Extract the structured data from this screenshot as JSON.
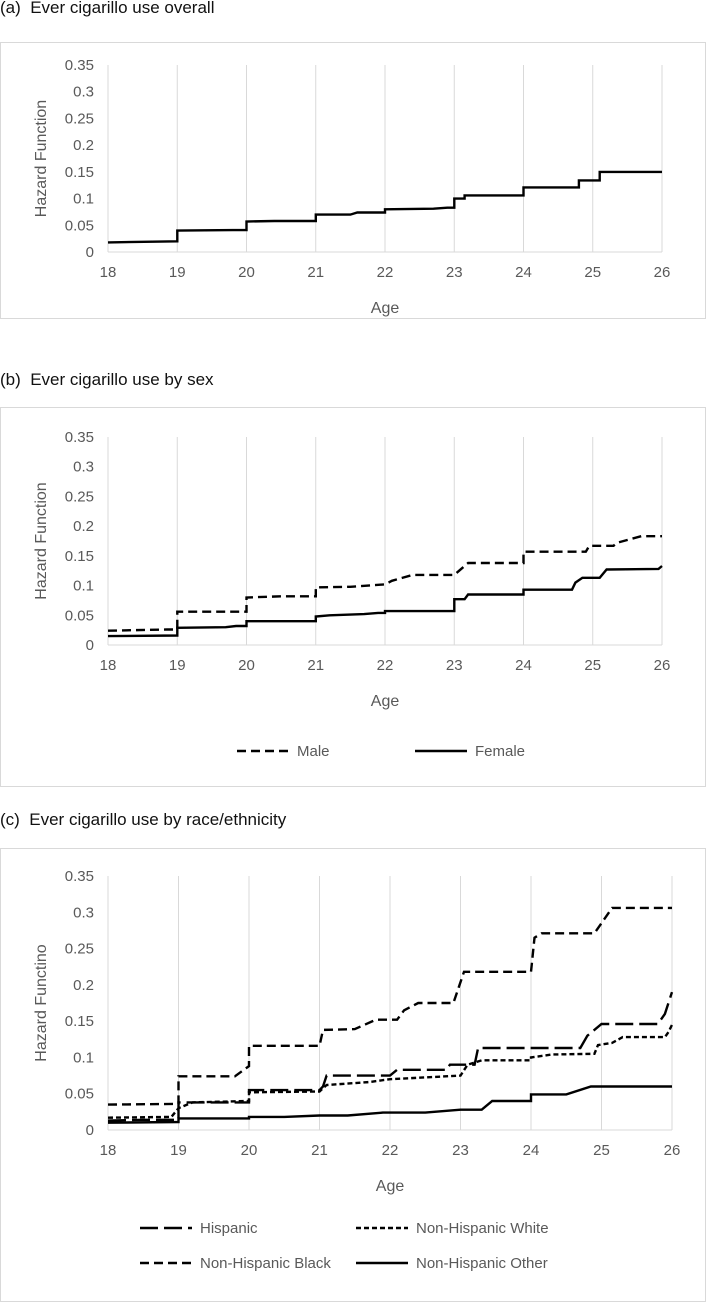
{
  "chart_data": [
    {
      "type": "line",
      "panel_title": "(a)  Ever cigarillo use overall",
      "xlabel": "Age",
      "ylabel": "Hazard Function",
      "xlim": [
        18,
        26
      ],
      "ylim": [
        0,
        0.35
      ],
      "x_ticks": [
        "18",
        "19",
        "20",
        "21",
        "22",
        "23",
        "24",
        "25",
        "26"
      ],
      "y_ticks": [
        "0",
        "0.05",
        "0.1",
        "0.15",
        "0.2",
        "0.25",
        "0.3",
        "0.35"
      ],
      "grid": "vertical",
      "legend": "none",
      "series": [
        {
          "style": "solid",
          "points": [
            [
              18,
              0.018
            ],
            [
              19,
              0.02
            ],
            [
              19,
              0.04
            ],
            [
              19.8,
              0.041
            ],
            [
              20,
              0.041
            ],
            [
              20,
              0.057
            ],
            [
              20.4,
              0.058
            ],
            [
              21,
              0.058
            ],
            [
              21,
              0.07
            ],
            [
              21.5,
              0.07
            ],
            [
              21.6,
              0.074
            ],
            [
              22,
              0.074
            ],
            [
              22,
              0.08
            ],
            [
              22.7,
              0.081
            ],
            [
              22.9,
              0.083
            ],
            [
              23,
              0.083
            ],
            [
              23,
              0.1
            ],
            [
              23.15,
              0.1
            ],
            [
              23.15,
              0.106
            ],
            [
              24,
              0.106
            ],
            [
              24,
              0.121
            ],
            [
              24.8,
              0.121
            ],
            [
              24.8,
              0.134
            ],
            [
              25.1,
              0.134
            ],
            [
              25.1,
              0.15
            ],
            [
              26,
              0.15
            ]
          ]
        }
      ]
    },
    {
      "type": "line",
      "panel_title": "(b)  Ever cigarillo use by sex",
      "xlabel": "Age",
      "ylabel": "Hazard Function",
      "xlim": [
        18,
        26
      ],
      "ylim": [
        0,
        0.35
      ],
      "x_ticks": [
        "18",
        "19",
        "20",
        "21",
        "22",
        "23",
        "24",
        "25",
        "26"
      ],
      "y_ticks": [
        "0",
        "0.05",
        "0.1",
        "0.15",
        "0.2",
        "0.25",
        "0.3",
        "0.35"
      ],
      "grid": "vertical",
      "legend": "bottom",
      "series": [
        {
          "name": "Male",
          "style": "dash",
          "points": [
            [
              18,
              0.024
            ],
            [
              18.85,
              0.026
            ],
            [
              19,
              0.026
            ],
            [
              19,
              0.056
            ],
            [
              20,
              0.056
            ],
            [
              20,
              0.08
            ],
            [
              20.5,
              0.082
            ],
            [
              21,
              0.082
            ],
            [
              21,
              0.097
            ],
            [
              21.5,
              0.098
            ],
            [
              22,
              0.102
            ],
            [
              22.1,
              0.108
            ],
            [
              22.4,
              0.118
            ],
            [
              23,
              0.118
            ],
            [
              23.2,
              0.138
            ],
            [
              24,
              0.138
            ],
            [
              24,
              0.157
            ],
            [
              24.9,
              0.157
            ],
            [
              24.95,
              0.167
            ],
            [
              25.3,
              0.167
            ],
            [
              25.35,
              0.172
            ],
            [
              25.7,
              0.183
            ],
            [
              26,
              0.183
            ]
          ]
        },
        {
          "name": "Female",
          "style": "solid",
          "points": [
            [
              18,
              0.015
            ],
            [
              19,
              0.016
            ],
            [
              19,
              0.029
            ],
            [
              19.7,
              0.03
            ],
            [
              19.85,
              0.032
            ],
            [
              20,
              0.032
            ],
            [
              20,
              0.04
            ],
            [
              21,
              0.04
            ],
            [
              21,
              0.048
            ],
            [
              21.2,
              0.05
            ],
            [
              21.7,
              0.052
            ],
            [
              21.9,
              0.054
            ],
            [
              22,
              0.054
            ],
            [
              22,
              0.057
            ],
            [
              23,
              0.057
            ],
            [
              23,
              0.077
            ],
            [
              23.15,
              0.077
            ],
            [
              23.2,
              0.085
            ],
            [
              24,
              0.085
            ],
            [
              24,
              0.093
            ],
            [
              24.7,
              0.093
            ],
            [
              24.75,
              0.105
            ],
            [
              24.85,
              0.113
            ],
            [
              25.1,
              0.113
            ],
            [
              25.2,
              0.127
            ],
            [
              25.95,
              0.128
            ],
            [
              26,
              0.133
            ]
          ]
        }
      ]
    },
    {
      "type": "line",
      "panel_title": "(c)  Ever cigarillo use by race/ethnicity",
      "xlabel": "Age",
      "ylabel": "Hazard Functino",
      "xlim": [
        18,
        26
      ],
      "ylim": [
        0,
        0.35
      ],
      "x_ticks": [
        "18",
        "19",
        "20",
        "21",
        "22",
        "23",
        "24",
        "25",
        "26"
      ],
      "y_ticks": [
        "0",
        "0.05",
        "0.1",
        "0.15",
        "0.2",
        "0.25",
        "0.3",
        "0.35"
      ],
      "grid": "vertical",
      "legend": "bottom",
      "series": [
        {
          "name": "Hispanic",
          "style": "longdash",
          "points": [
            [
              18,
              0.013
            ],
            [
              18.5,
              0.014
            ],
            [
              19,
              0.014
            ],
            [
              19,
              0.038
            ],
            [
              20,
              0.038
            ],
            [
              20,
              0.055
            ],
            [
              21,
              0.055
            ],
            [
              21.05,
              0.06
            ],
            [
              21.1,
              0.075
            ],
            [
              22,
              0.075
            ],
            [
              22.1,
              0.083
            ],
            [
              22.8,
              0.083
            ],
            [
              22.85,
              0.09
            ],
            [
              23.2,
              0.09
            ],
            [
              23.25,
              0.113
            ],
            [
              24.7,
              0.113
            ],
            [
              24.8,
              0.13
            ],
            [
              25,
              0.146
            ],
            [
              25.8,
              0.146
            ],
            [
              25.9,
              0.16
            ],
            [
              26,
              0.19
            ]
          ]
        },
        {
          "name": "Non-Hispanic White",
          "style": "shortdash",
          "points": [
            [
              18,
              0.017
            ],
            [
              18.9,
              0.018
            ],
            [
              19,
              0.03
            ],
            [
              19.2,
              0.038
            ],
            [
              20,
              0.04
            ],
            [
              20,
              0.052
            ],
            [
              21,
              0.053
            ],
            [
              21.1,
              0.062
            ],
            [
              21.7,
              0.066
            ],
            [
              22,
              0.07
            ],
            [
              23,
              0.075
            ],
            [
              23.1,
              0.09
            ],
            [
              23.3,
              0.096
            ],
            [
              24,
              0.096
            ],
            [
              24,
              0.1
            ],
            [
              24.3,
              0.104
            ],
            [
              24.9,
              0.105
            ],
            [
              24.95,
              0.117
            ],
            [
              25.15,
              0.12
            ],
            [
              25.3,
              0.128
            ],
            [
              25.9,
              0.128
            ],
            [
              25.95,
              0.135
            ],
            [
              26,
              0.145
            ]
          ]
        },
        {
          "name": "Non-Hispanic Black",
          "style": "dash",
          "points": [
            [
              18,
              0.035
            ],
            [
              19,
              0.036
            ],
            [
              19,
              0.074
            ],
            [
              19.8,
              0.074
            ],
            [
              20,
              0.088
            ],
            [
              20,
              0.116
            ],
            [
              21,
              0.116
            ],
            [
              21.05,
              0.138
            ],
            [
              21.5,
              0.139
            ],
            [
              21.8,
              0.152
            ],
            [
              22.1,
              0.152
            ],
            [
              22.2,
              0.165
            ],
            [
              22.4,
              0.175
            ],
            [
              22.9,
              0.175
            ],
            [
              23.05,
              0.218
            ],
            [
              24,
              0.218
            ],
            [
              24.05,
              0.265
            ],
            [
              24.15,
              0.271
            ],
            [
              24.9,
              0.271
            ],
            [
              25,
              0.285
            ],
            [
              25.15,
              0.306
            ],
            [
              26,
              0.306
            ]
          ]
        },
        {
          "name": "Non-Hispanic Other",
          "style": "solid",
          "points": [
            [
              18,
              0.01
            ],
            [
              19,
              0.011
            ],
            [
              19,
              0.016
            ],
            [
              20,
              0.016
            ],
            [
              20,
              0.018
            ],
            [
              20.5,
              0.018
            ],
            [
              21,
              0.02
            ],
            [
              21.4,
              0.02
            ],
            [
              21.9,
              0.024
            ],
            [
              22.5,
              0.024
            ],
            [
              23,
              0.028
            ],
            [
              23.3,
              0.028
            ],
            [
              23.45,
              0.04
            ],
            [
              24,
              0.04
            ],
            [
              24,
              0.049
            ],
            [
              24.5,
              0.049
            ],
            [
              24.85,
              0.06
            ],
            [
              26,
              0.06
            ]
          ]
        }
      ]
    }
  ]
}
